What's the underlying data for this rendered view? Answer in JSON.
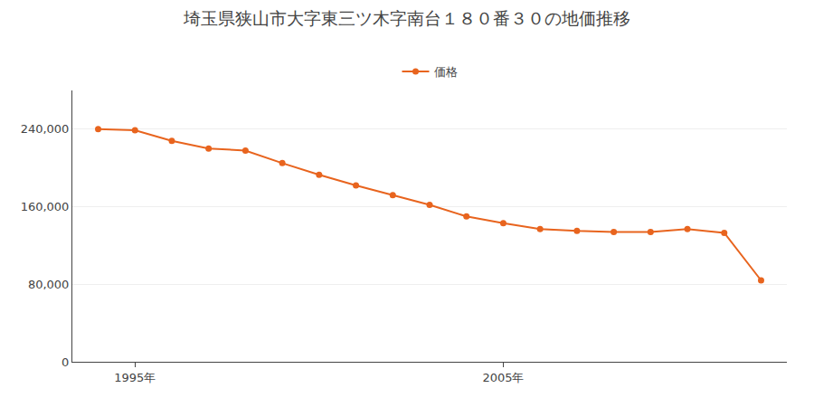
{
  "chart_data": {
    "type": "line",
    "title": "埼玉県狭山市大字東三ツ木字南台１８０番３０の地価推移",
    "x": [
      1994,
      1995,
      1996,
      1997,
      1998,
      1999,
      2000,
      2001,
      2002,
      2003,
      2004,
      2005,
      2006,
      2007,
      2008,
      2009,
      2010,
      2011,
      2012
    ],
    "series": [
      {
        "name": "価格",
        "color": "#E8641E",
        "values": [
          240000,
          239000,
          228000,
          220000,
          218000,
          205000,
          193000,
          182000,
          172000,
          162000,
          150000,
          143000,
          137000,
          135000,
          134000,
          134000,
          137000,
          133000,
          84000
        ]
      }
    ],
    "xlim": [
      1993.3,
      2012.7
    ],
    "xticks": [
      {
        "value": 1995,
        "label": "1995年"
      },
      {
        "value": 2005,
        "label": "2005年"
      }
    ],
    "ylim": [
      0,
      280000
    ],
    "yticks": [
      0,
      {
        "value": 80000,
        "label": "80,000"
      },
      {
        "value": 160000,
        "label": "160,000"
      },
      {
        "value": 240000,
        "label": "240,000"
      }
    ],
    "grid": "y",
    "legend": "top",
    "marker": "circle"
  }
}
